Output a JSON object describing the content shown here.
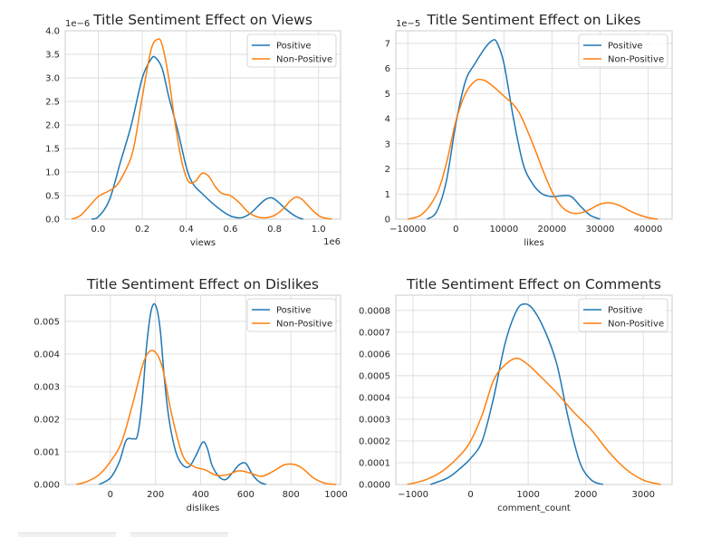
{
  "chart_data": [
    {
      "type": "line",
      "title": "Title Sentiment Effect on Views",
      "xlabel": "views",
      "x_multiplier": "1e6",
      "y_multiplier": "1e−6",
      "xlim": [
        -150000,
        1100000
      ],
      "ylim": [
        0,
        4.0
      ],
      "xticks": [
        {
          "v": 0,
          "label": "0.0"
        },
        {
          "v": 200000,
          "label": "0.2"
        },
        {
          "v": 400000,
          "label": "0.4"
        },
        {
          "v": 600000,
          "label": "0.6"
        },
        {
          "v": 800000,
          "label": "0.8"
        },
        {
          "v": 1000000,
          "label": "1.0"
        }
      ],
      "yticks": [
        {
          "v": 0,
          "label": "0.0"
        },
        {
          "v": 0.5,
          "label": "0.5"
        },
        {
          "v": 1.0,
          "label": "1.0"
        },
        {
          "v": 1.5,
          "label": "1.5"
        },
        {
          "v": 2.0,
          "label": "2.0"
        },
        {
          "v": 2.5,
          "label": "2.5"
        },
        {
          "v": 3.0,
          "label": "3.0"
        },
        {
          "v": 3.5,
          "label": "3.5"
        },
        {
          "v": 4.0,
          "label": "4.0"
        }
      ],
      "grid": true,
      "legend": "upper right",
      "series": [
        {
          "name": "Positive",
          "color": "#1f77b4",
          "x": [
            -30000,
            0,
            50000,
            100000,
            150000,
            200000,
            240000,
            260000,
            290000,
            320000,
            360000,
            400000,
            430000,
            470000,
            520000,
            570000,
            610000,
            650000,
            690000,
            730000,
            760000,
            790000,
            820000,
            860000,
            900000,
            930000
          ],
          "y": [
            0.0,
            0.05,
            0.4,
            1.2,
            2.0,
            3.0,
            3.4,
            3.43,
            3.2,
            2.6,
            1.9,
            1.1,
            0.75,
            0.55,
            0.33,
            0.15,
            0.05,
            0.03,
            0.12,
            0.3,
            0.42,
            0.45,
            0.35,
            0.18,
            0.05,
            0.0
          ]
        },
        {
          "name": "Non-Positive",
          "color": "#ff7f0e",
          "x": [
            -120000,
            -80000,
            -40000,
            0,
            40000,
            80000,
            120000,
            160000,
            200000,
            240000,
            270000,
            290000,
            320000,
            350000,
            380000,
            410000,
            440000,
            470000,
            500000,
            530000,
            560000,
            600000,
            640000,
            680000,
            720000,
            760000,
            800000,
            840000,
            870000,
            900000,
            930000,
            970000,
            1010000,
            1060000
          ],
          "y": [
            0.0,
            0.08,
            0.28,
            0.48,
            0.58,
            0.7,
            1.0,
            1.5,
            2.6,
            3.6,
            3.82,
            3.7,
            3.0,
            2.0,
            1.2,
            0.8,
            0.8,
            0.97,
            0.92,
            0.7,
            0.55,
            0.5,
            0.35,
            0.15,
            0.05,
            0.03,
            0.08,
            0.22,
            0.38,
            0.47,
            0.4,
            0.2,
            0.05,
            0.0
          ]
        }
      ]
    },
    {
      "type": "line",
      "title": "Title Sentiment Effect on Likes",
      "xlabel": "likes",
      "y_multiplier": "1e−5",
      "xlim": [
        -12500,
        45000
      ],
      "ylim": [
        0,
        7.5
      ],
      "xticks": [
        {
          "v": -10000,
          "label": "−10000"
        },
        {
          "v": 0,
          "label": "0"
        },
        {
          "v": 10000,
          "label": "10000"
        },
        {
          "v": 20000,
          "label": "20000"
        },
        {
          "v": 30000,
          "label": "30000"
        },
        {
          "v": 40000,
          "label": "40000"
        }
      ],
      "yticks": [
        {
          "v": 0,
          "label": "0"
        },
        {
          "v": 1,
          "label": "1"
        },
        {
          "v": 2,
          "label": "2"
        },
        {
          "v": 3,
          "label": "3"
        },
        {
          "v": 4,
          "label": "4"
        },
        {
          "v": 5,
          "label": "5"
        },
        {
          "v": 6,
          "label": "6"
        },
        {
          "v": 7,
          "label": "7"
        }
      ],
      "grid": true,
      "legend": "upper right",
      "series": [
        {
          "name": "Positive",
          "color": "#1f77b4",
          "x": [
            -6000,
            -4000,
            -2000,
            0,
            2000,
            4000,
            6000,
            7500,
            8500,
            10000,
            12000,
            14000,
            16000,
            18000,
            20000,
            22000,
            24000,
            26000,
            28000,
            30000
          ],
          "y": [
            0.0,
            0.3,
            1.5,
            3.8,
            5.5,
            6.2,
            6.8,
            7.1,
            7.05,
            6.2,
            4.0,
            2.2,
            1.4,
            1.0,
            0.9,
            0.93,
            0.9,
            0.5,
            0.15,
            0.0
          ]
        },
        {
          "name": "Non-Positive",
          "color": "#ff7f0e",
          "x": [
            -10000,
            -7000,
            -4000,
            -2000,
            0,
            2000,
            4000,
            5500,
            7000,
            10000,
            13000,
            16000,
            18000,
            20000,
            22000,
            24000,
            26000,
            28000,
            30000,
            32000,
            34000,
            36000,
            38000,
            40000,
            42000
          ],
          "y": [
            0.0,
            0.2,
            1.0,
            2.2,
            3.9,
            5.0,
            5.5,
            5.55,
            5.4,
            4.9,
            4.3,
            3.0,
            2.0,
            1.1,
            0.5,
            0.25,
            0.25,
            0.4,
            0.6,
            0.65,
            0.55,
            0.35,
            0.18,
            0.06,
            0.0
          ]
        }
      ]
    },
    {
      "type": "line",
      "title": "Title Sentiment Effect on Dislikes",
      "xlabel": "dislikes",
      "xlim": [
        -200,
        1020
      ],
      "ylim": [
        0,
        0.0058
      ],
      "xticks": [
        {
          "v": 0,
          "label": "0"
        },
        {
          "v": 200,
          "label": "200"
        },
        {
          "v": 400,
          "label": "400"
        },
        {
          "v": 600,
          "label": "600"
        },
        {
          "v": 800,
          "label": "800"
        },
        {
          "v": 1000,
          "label": "1000"
        }
      ],
      "yticks": [
        {
          "v": 0,
          "label": "0.000"
        },
        {
          "v": 0.001,
          "label": "0.001"
        },
        {
          "v": 0.002,
          "label": "0.002"
        },
        {
          "v": 0.003,
          "label": "0.003"
        },
        {
          "v": 0.004,
          "label": "0.004"
        },
        {
          "v": 0.005,
          "label": "0.005"
        }
      ],
      "grid": true,
      "legend": "upper right",
      "series": [
        {
          "name": "Positive",
          "color": "#1f77b4",
          "x": [
            -50,
            0,
            40,
            70,
            100,
            120,
            140,
            160,
            180,
            200,
            220,
            240,
            260,
            290,
            320,
            350,
            380,
            410,
            430,
            450,
            480,
            510,
            540,
            570,
            600,
            630,
            660,
            690
          ],
          "y": [
            0.0,
            0.0002,
            0.0007,
            0.00135,
            0.0014,
            0.0015,
            0.0025,
            0.0042,
            0.0053,
            0.0055,
            0.0048,
            0.0032,
            0.002,
            0.001,
            0.0006,
            0.00055,
            0.0009,
            0.0013,
            0.0011,
            0.0006,
            0.00025,
            0.00015,
            0.00035,
            0.0006,
            0.00065,
            0.0003,
            8e-05,
            0.0
          ]
        },
        {
          "name": "Non-Positive",
          "color": "#ff7f0e",
          "x": [
            -150,
            -100,
            -50,
            0,
            50,
            100,
            150,
            190,
            230,
            270,
            320,
            370,
            420,
            470,
            520,
            570,
            620,
            670,
            720,
            770,
            810,
            850,
            900,
            950,
            1000
          ],
          "y": [
            0.0,
            0.0001,
            0.0003,
            0.0007,
            0.0013,
            0.0025,
            0.0038,
            0.0041,
            0.0036,
            0.0022,
            0.0009,
            0.00055,
            0.00045,
            0.00028,
            0.0003,
            0.00042,
            0.00035,
            0.00025,
            0.0004,
            0.0006,
            0.00062,
            0.0005,
            0.0002,
            4e-05,
            0.0
          ]
        }
      ]
    },
    {
      "type": "line",
      "title": "Title Sentiment Effect on Comments",
      "xlabel": "comment_count",
      "xlim": [
        -1300,
        3500
      ],
      "ylim": [
        0,
        0.00087
      ],
      "xticks": [
        {
          "v": -1000,
          "label": "−1000"
        },
        {
          "v": 0,
          "label": "0"
        },
        {
          "v": 1000,
          "label": "1000"
        },
        {
          "v": 2000,
          "label": "2000"
        },
        {
          "v": 3000,
          "label": "3000"
        }
      ],
      "yticks": [
        {
          "v": 0,
          "label": "0.0000"
        },
        {
          "v": 0.0001,
          "label": "0.0001"
        },
        {
          "v": 0.0002,
          "label": "0.0002"
        },
        {
          "v": 0.0003,
          "label": "0.0003"
        },
        {
          "v": 0.0004,
          "label": "0.0004"
        },
        {
          "v": 0.0005,
          "label": "0.0005"
        },
        {
          "v": 0.0006,
          "label": "0.0006"
        },
        {
          "v": 0.0007,
          "label": "0.0007"
        },
        {
          "v": 0.0008,
          "label": "0.0008"
        }
      ],
      "grid": true,
      "legend": "upper right",
      "series": [
        {
          "name": "Positive",
          "color": "#1f77b4",
          "x": [
            -700,
            -400,
            -200,
            0,
            200,
            400,
            600,
            800,
            950,
            1100,
            1300,
            1500,
            1700,
            1900,
            2100,
            2300
          ],
          "y": [
            0.0,
            3e-05,
            7e-05,
            0.00012,
            0.0002,
            0.0004,
            0.00065,
            0.0008,
            0.00083,
            0.0008,
            0.0007,
            0.00055,
            0.0003,
            0.0001,
            2e-05,
            0.0
          ]
        },
        {
          "name": "Non-Positive",
          "color": "#ff7f0e",
          "x": [
            -1100,
            -800,
            -500,
            -200,
            0,
            200,
            400,
            600,
            800,
            1000,
            1200,
            1500,
            1800,
            2100,
            2400,
            2700,
            3000,
            3300
          ],
          "y": [
            0.0,
            2e-05,
            6e-05,
            0.00013,
            0.0002,
            0.00032,
            0.00048,
            0.00055,
            0.00058,
            0.00055,
            0.0005,
            0.00042,
            0.00033,
            0.00025,
            0.00015,
            7e-05,
            2e-05,
            0.0
          ]
        }
      ]
    }
  ]
}
